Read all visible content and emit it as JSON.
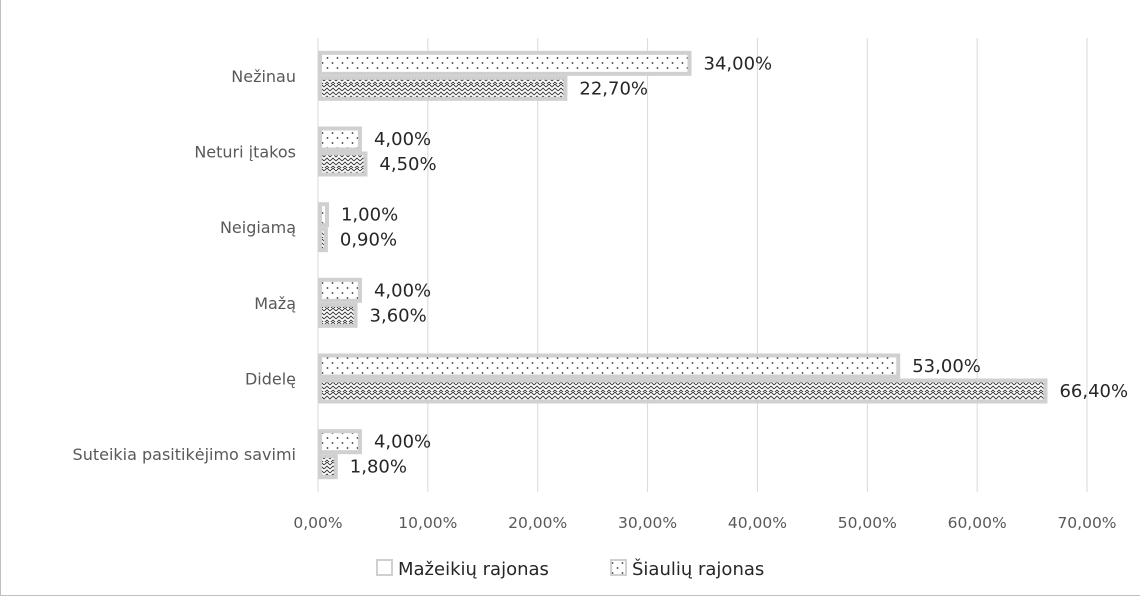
{
  "chart_data": {
    "type": "bar",
    "orientation": "horizontal",
    "categories": [
      "Nežinau",
      "Neturi įtakos",
      "Neigiamą",
      "Mažą",
      "Didelę",
      "Suteikia pasitikėjimo savimi"
    ],
    "series": [
      {
        "name": "Mažeikių rajonas",
        "values": [
          34.0,
          4.0,
          1.0,
          4.0,
          53.0,
          4.0
        ],
        "labels": [
          "34,00%",
          "4,00%",
          "1,00%",
          "4,00%",
          "53,00%",
          "4,00%"
        ],
        "pattern": "dots"
      },
      {
        "name": "Šiaulių rajonas",
        "values": [
          22.7,
          4.5,
          0.9,
          3.6,
          66.4,
          1.8
        ],
        "labels": [
          "22,70%",
          "4,50%",
          "0,90%",
          "3,60%",
          "66,40%",
          "1,80%"
        ],
        "pattern": "zigzag"
      }
    ],
    "xlim": [
      0,
      70
    ],
    "x_ticks": [
      "0,00%",
      "10,00%",
      "20,00%",
      "30,00%",
      "40,00%",
      "50,00%",
      "60,00%",
      "70,00%"
    ],
    "grid": true,
    "legend_position": "bottom",
    "legend": [
      {
        "name": "Mažeikių rajonas",
        "pattern": "plain"
      },
      {
        "name": "Šiaulių rajonas",
        "pattern": "dots"
      }
    ]
  },
  "colors": {
    "bar_border": "#d0d0d0",
    "bar_fill": "#ffffff",
    "pattern": "#333333",
    "gridline": "#d9d9d9",
    "axis_text": "#595959",
    "label_text": "#262626"
  }
}
